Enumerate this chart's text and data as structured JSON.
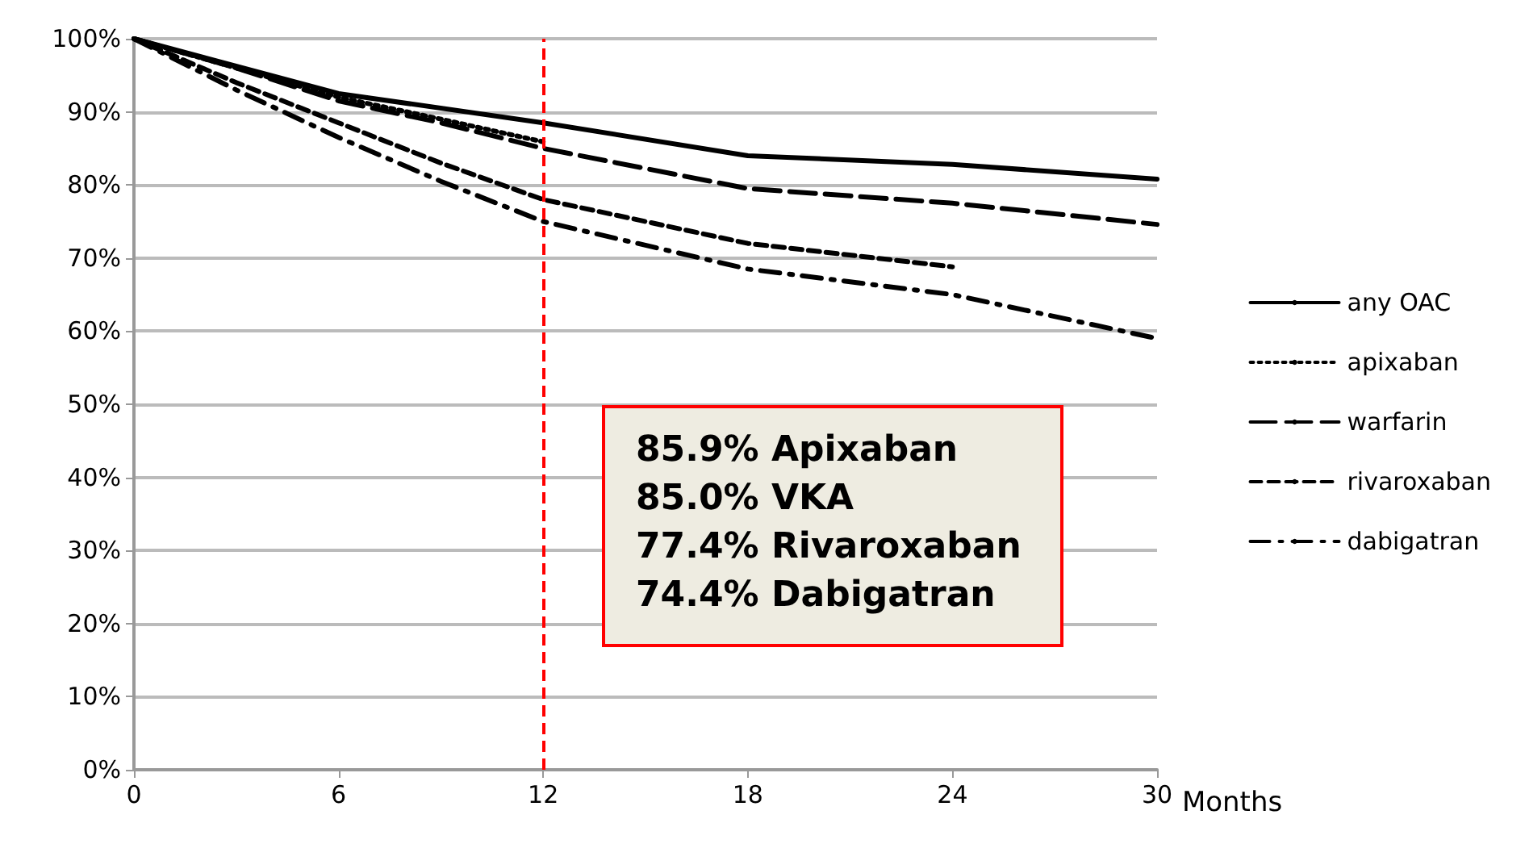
{
  "chart_data": {
    "type": "line",
    "xlabel": "Months",
    "series": [
      {
        "name": "any OAC",
        "color": "#000000",
        "line_style": "solid",
        "x": [
          0,
          6,
          12,
          18,
          24,
          30
        ],
        "values": [
          100,
          92.5,
          88.5,
          84,
          82.8,
          80.8
        ]
      },
      {
        "name": "apixaban",
        "color": "#000000",
        "line_style": "dotted",
        "x": [
          0,
          3,
          6,
          9,
          12
        ],
        "values": [
          100,
          96,
          92,
          89,
          85.9
        ]
      },
      {
        "name": "warfarin",
        "color": "#000000",
        "line_style": "longdash",
        "x": [
          0,
          3,
          6,
          9,
          12,
          18,
          24,
          30
        ],
        "values": [
          100,
          96,
          91.5,
          88.5,
          85,
          79.5,
          77.5,
          74.6
        ]
      },
      {
        "name": "rivaroxaban",
        "color": "#000000",
        "line_style": "dashed",
        "x": [
          0,
          3,
          6,
          9,
          12,
          18,
          24
        ],
        "values": [
          100,
          94,
          88.5,
          83,
          78,
          72,
          68.8
        ]
      },
      {
        "name": "dabigatran",
        "color": "#000000",
        "line_style": "dashdot",
        "x": [
          0,
          3,
          6,
          9,
          12,
          18,
          24,
          30
        ],
        "values": [
          100,
          93,
          86.5,
          80.5,
          75,
          68.5,
          65,
          59
        ]
      }
    ],
    "xlim": [
      0,
      30
    ],
    "xticks": [
      0,
      6,
      12,
      18,
      24,
      30
    ],
    "ylim": [
      0,
      100
    ],
    "yticks": [
      {
        "value": 0,
        "label": "0%"
      },
      {
        "value": 10,
        "label": "10%"
      },
      {
        "value": 20,
        "label": "20%"
      },
      {
        "value": 30,
        "label": "30%"
      },
      {
        "value": 40,
        "label": "40%"
      },
      {
        "value": 50,
        "label": "50%"
      },
      {
        "value": 60,
        "label": "60%"
      },
      {
        "value": 70,
        "label": "70%"
      },
      {
        "value": 80,
        "label": "80%"
      },
      {
        "value": 90,
        "label": "90%"
      },
      {
        "value": 100,
        "label": "100%"
      }
    ],
    "grid": "y",
    "legend": "right",
    "marker": "none",
    "ref_lines": [
      {
        "axis": "x",
        "value": 12,
        "color": "#ff0000",
        "line_style": "dashed"
      }
    ],
    "annotations": [
      "85.9% Apixaban",
      "85.0% VKA",
      "77.4% Rivaroxaban",
      "74.4% Dabigatran"
    ]
  }
}
